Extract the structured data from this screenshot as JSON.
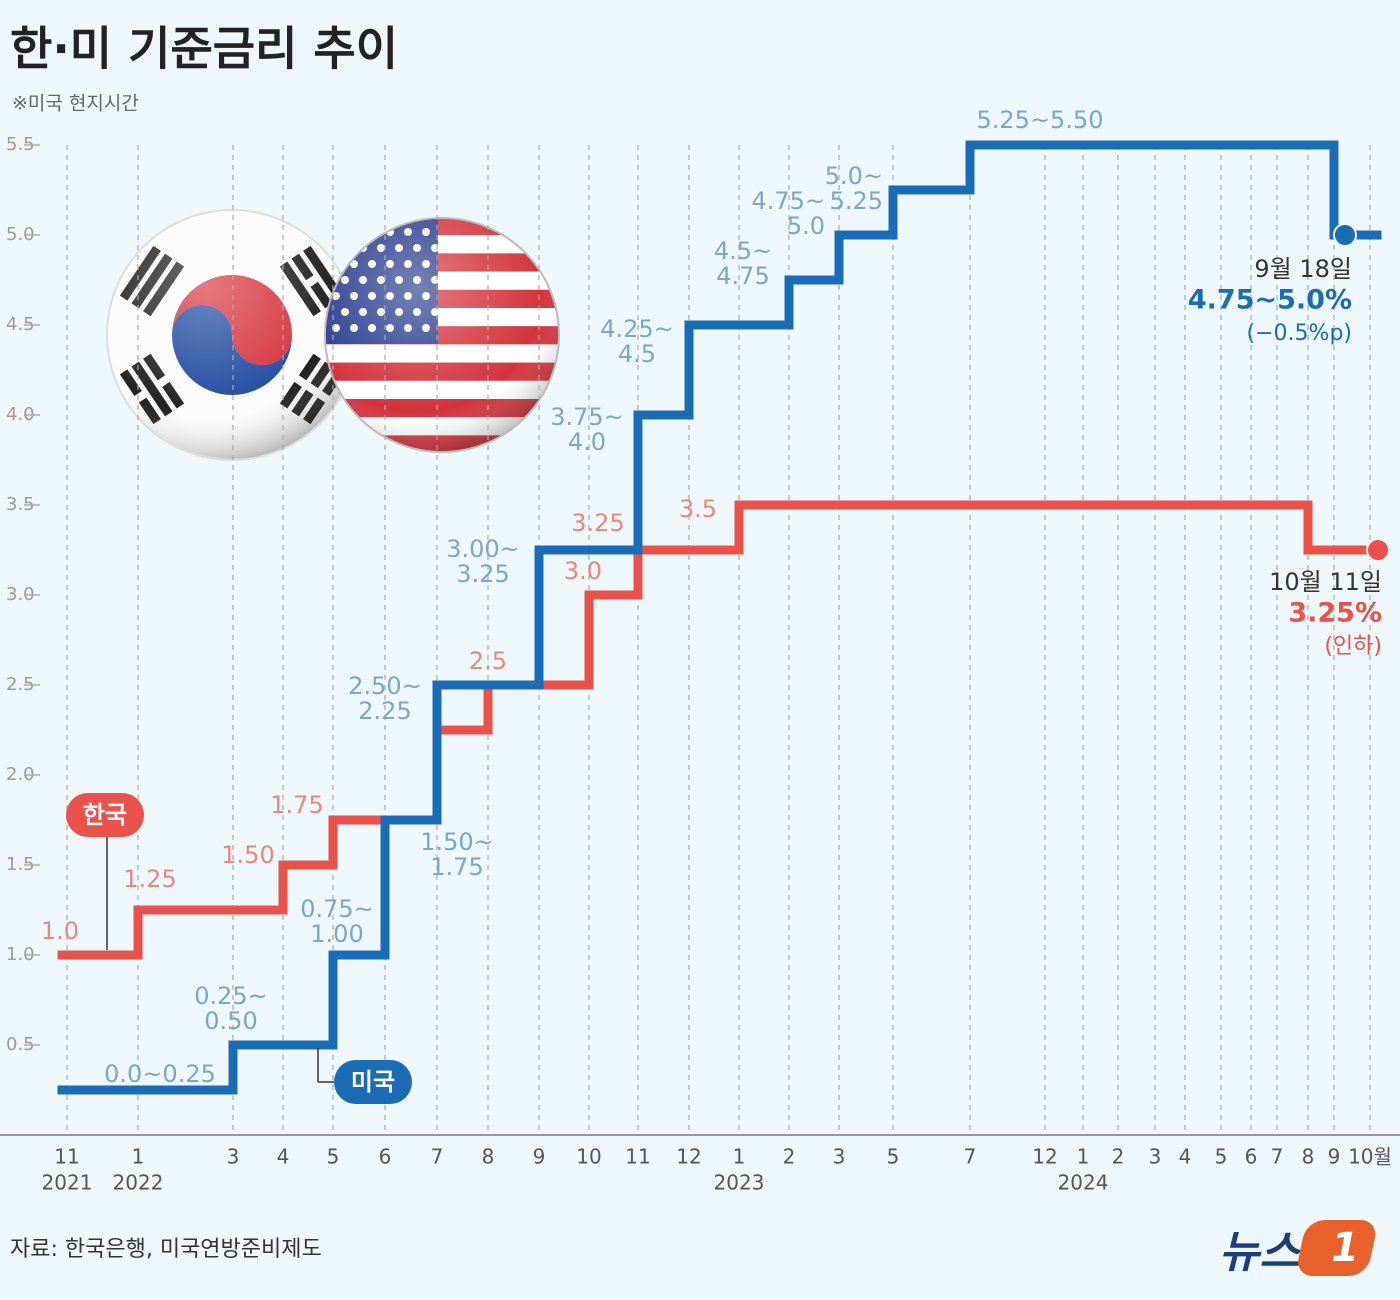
{
  "title": "한·미 기준금리 추이",
  "subtitle": "※미국 현지시간",
  "source": "자료: 한국은행, 미국연방준비제도",
  "logo": {
    "text": "뉴스",
    "mark": "1"
  },
  "chart_data": {
    "type": "step",
    "categories": [
      "11",
      "1",
      "3",
      "4",
      "5",
      "6",
      "7",
      "8",
      "9",
      "10",
      "11",
      "12",
      "1",
      "2",
      "3",
      "5",
      "7",
      "12",
      "1",
      "2",
      "3",
      "4",
      "5",
      "6",
      "7",
      "8",
      "9",
      "10월"
    ],
    "x_year_labels": [
      "2021",
      "2022",
      null,
      null,
      null,
      null,
      null,
      null,
      null,
      null,
      null,
      null,
      "2023",
      null,
      null,
      null,
      null,
      null,
      "2024",
      null,
      null,
      null,
      null,
      null,
      null,
      null,
      null,
      null
    ],
    "ylim": [
      0,
      5.5
    ],
    "yticks": [
      0.5,
      {
        "value": 1,
        "label": "1.0"
      },
      1.5,
      {
        "value": 2,
        "label": "2.0"
      },
      2.5,
      {
        "value": 3,
        "label": "3.0"
      },
      3.5,
      {
        "value": 4,
        "label": "4.0"
      },
      4.5,
      {
        "value": 5,
        "label": "5.0"
      },
      5.5
    ],
    "grid": true,
    "series": [
      {
        "name": "한국",
        "color": "#e8524a",
        "label_color": "#e8877c",
        "values": [
          1.0,
          1.25,
          1.25,
          1.5,
          1.75,
          1.75,
          2.25,
          2.5,
          2.5,
          3.0,
          3.25,
          3.25,
          3.5,
          3.5,
          3.5,
          3.5,
          3.5,
          3.5,
          3.5,
          3.5,
          3.5,
          3.5,
          3.5,
          3.5,
          3.5,
          3.25,
          3.25,
          3.25
        ],
        "value_labels": [
          [
            "1.0"
          ],
          [
            "1.25"
          ],
          null,
          [
            "1.50"
          ],
          [
            "1.75"
          ],
          null,
          null,
          [
            "2.5"
          ],
          null,
          [
            "3.0"
          ],
          [
            "3.25"
          ],
          null,
          [
            "3.5"
          ],
          null,
          null,
          null,
          null,
          null,
          null,
          null,
          null,
          null,
          null,
          null,
          null,
          null,
          null,
          null
        ]
      },
      {
        "name": "미국",
        "color": "#1a6cb4",
        "label_color": "#7ba7c2",
        "values": [
          0.25,
          0.25,
          0.5,
          0.5,
          1.0,
          1.75,
          2.5,
          2.5,
          3.25,
          3.25,
          4.0,
          4.5,
          4.5,
          4.75,
          5.0,
          5.25,
          5.5,
          5.5,
          5.5,
          5.5,
          5.5,
          5.5,
          5.5,
          5.5,
          5.5,
          5.5,
          5.0,
          5.0
        ],
        "value_labels": [
          [
            "0.0~0.25"
          ],
          null,
          [
            "0.25~",
            "0.50"
          ],
          null,
          [
            "0.75~",
            "1.00"
          ],
          [
            "1.50~",
            "1.75"
          ],
          [
            "2.50~",
            "2.25"
          ],
          null,
          [
            "3.00~",
            "3.25"
          ],
          null,
          [
            "3.75~",
            "4.0"
          ],
          [
            "4.25~",
            "4.5"
          ],
          null,
          [
            "4.5~",
            "4.75"
          ],
          [
            "4.75~",
            "5.0"
          ],
          [
            "5.0~",
            "5.25"
          ],
          [
            "5.25~5.50"
          ],
          null,
          null,
          null,
          null,
          null,
          null,
          null,
          null,
          null,
          null,
          null
        ]
      }
    ],
    "annotations": [
      {
        "date": "10월 11일",
        "rate": "3.25%",
        "change": "(인하)"
      },
      {
        "date": "9월 18일",
        "rate": "4.75~5.0%",
        "change": "(−0.5%p)"
      }
    ]
  }
}
